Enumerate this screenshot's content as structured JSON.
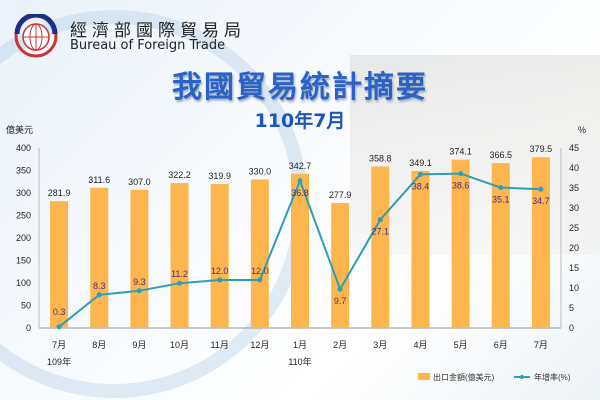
{
  "header": {
    "org_cn": "經濟部國際貿易局",
    "org_en": "Bureau of Foreign Trade",
    "title": "我國貿易統計摘要",
    "subtitle": "110年7月"
  },
  "chart_data": {
    "type": "bar+line",
    "categories": [
      "7月",
      "8月",
      "9月",
      "10月",
      "11月",
      "12月",
      "1月",
      "2月",
      "3月",
      "4月",
      "5月",
      "6月",
      "7月"
    ],
    "year_labels": [
      {
        "text": "109年",
        "index": 0
      },
      {
        "text": "110年",
        "index": 6
      }
    ],
    "series": [
      {
        "name": "出口金額(億美元)",
        "type": "bar",
        "axis": "left",
        "color": "#FDB64E",
        "values": [
          281.9,
          311.6,
          307.0,
          322.2,
          319.9,
          330.0,
          342.7,
          277.9,
          358.8,
          349.1,
          374.1,
          366.5,
          379.5
        ]
      },
      {
        "name": "年增率(%)",
        "type": "line",
        "axis": "right",
        "color": "#2A9FB6",
        "values": [
          0.3,
          8.3,
          9.3,
          11.2,
          12.0,
          12.0,
          36.8,
          9.7,
          27.1,
          38.4,
          38.6,
          35.1,
          34.7
        ]
      }
    ],
    "ylabel_left": "億美元",
    "ylabel_right": "%",
    "ylim_left": [
      0,
      400
    ],
    "yticks_left": [
      0,
      50,
      100,
      150,
      200,
      250,
      300,
      350,
      400
    ],
    "ylim_right": [
      0,
      45
    ],
    "yticks_right": [
      0,
      5,
      10,
      15,
      20,
      25,
      30,
      35,
      40,
      45
    ],
    "legend": "bottom-right"
  }
}
